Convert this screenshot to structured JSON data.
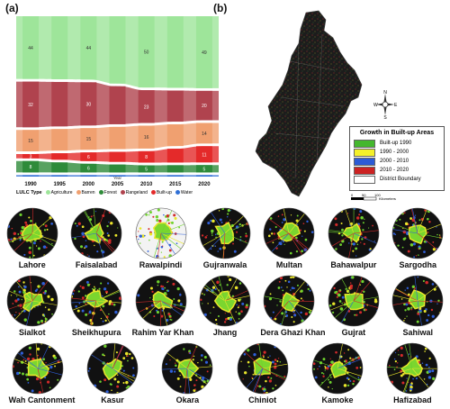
{
  "panels": {
    "a": "(a)",
    "b": "(b)"
  },
  "chart_data": {
    "type": "area",
    "title": "",
    "xlabel": "Year",
    "ylabel": "",
    "x": [
      "1990",
      "1995",
      "2000",
      "2005",
      "2010",
      "2015",
      "2020"
    ],
    "labeled_years": [
      "1990",
      "2000",
      "2010",
      "2020"
    ],
    "series": [
      {
        "name": "Agriculture",
        "color": "#9ee59a",
        "values_at_labeled_years": [
          44,
          44,
          50,
          49
        ]
      },
      {
        "name": "Rangeland",
        "color": "#b0434e",
        "values_at_labeled_years": [
          32,
          30,
          23,
          20
        ]
      },
      {
        "name": "Barren",
        "color": "#f0a070",
        "values_at_labeled_years": [
          15,
          15,
          16,
          14
        ]
      },
      {
        "name": "Built-up",
        "color": "#e42a2a",
        "values_at_labeled_years": [
          3,
          6,
          8,
          11
        ]
      },
      {
        "name": "Forest",
        "color": "#2e8b3a",
        "values_at_labeled_years": [
          8,
          6,
          5,
          5
        ]
      },
      {
        "name": "Water",
        "color": "#2f6fd6",
        "values_at_labeled_years": [
          1,
          1,
          1,
          1
        ]
      }
    ],
    "legend": {
      "title": "LULC Type",
      "items": [
        "Agriculture",
        "Barren",
        "Forest",
        "Rangeland",
        "Built-up",
        "Water"
      ],
      "placement": "bottom"
    }
  },
  "map_legend": {
    "title": "Growth in Built-up Areas",
    "items": [
      {
        "label": "Built-up 1990",
        "color": "#44b72e"
      },
      {
        "label": "1990 - 2000",
        "color": "#f4f02a"
      },
      {
        "label": "2000 - 2010",
        "color": "#2c5bd6"
      },
      {
        "label": "2010 - 2020",
        "color": "#cc2222"
      },
      {
        "label": "District Boundary",
        "color": "#ffffff"
      }
    ],
    "scale_ticks": [
      "0",
      "50",
      "100"
    ],
    "scale_unit": "Kilometers",
    "compass": {
      "n": "N",
      "s": "S",
      "e": "E",
      "w": "W"
    }
  },
  "cities": [
    {
      "name": "Lahore"
    },
    {
      "name": "Faisalabad"
    },
    {
      "name": "Rawalpindi"
    },
    {
      "name": "Gujranwala"
    },
    {
      "name": "Multan"
    },
    {
      "name": "Bahawalpur"
    },
    {
      "name": "Sargodha"
    },
    {
      "name": "Sialkot"
    },
    {
      "name": "Sheikhupura"
    },
    {
      "name": "Rahim Yar Khan"
    },
    {
      "name": "Jhang"
    },
    {
      "name": "Dera Ghazi Khan"
    },
    {
      "name": "Gujrat"
    },
    {
      "name": "Sahiwal"
    },
    {
      "name": "Wah Cantonment"
    },
    {
      "name": "Kasur"
    },
    {
      "name": "Okara"
    },
    {
      "name": "Chiniot"
    },
    {
      "name": "Kamoke"
    },
    {
      "name": "Hafizabad"
    }
  ]
}
